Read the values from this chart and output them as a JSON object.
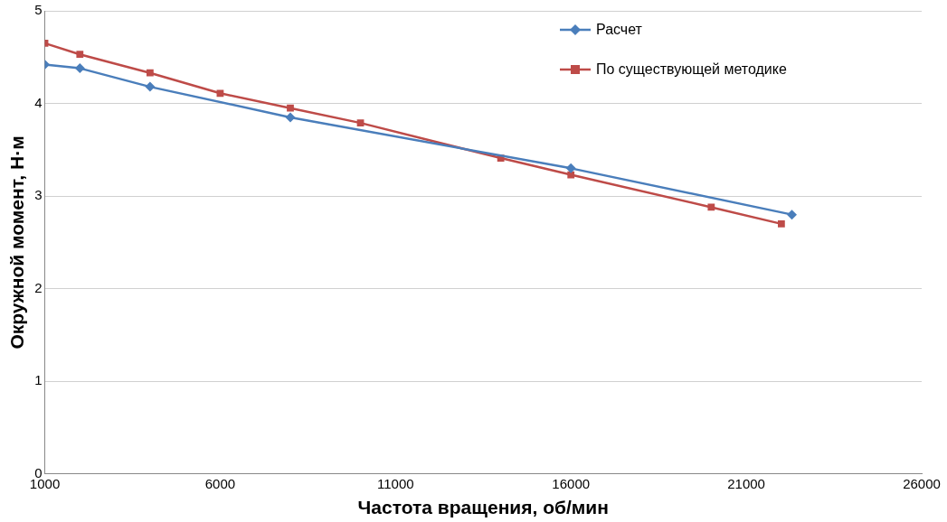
{
  "chart_data": {
    "type": "line",
    "xlabel": "Частота вращения, об/мин",
    "ylabel": "Окружной момент, Н·м",
    "series": [
      {
        "name": "Расчет",
        "color": "#4a7ebb",
        "marker": "diamond",
        "x": [
          1000,
          2000,
          4000,
          8000,
          16000,
          22300
        ],
        "values": [
          4.42,
          4.38,
          4.18,
          3.85,
          3.3,
          2.8
        ]
      },
      {
        "name": "По существующей методике",
        "color": "#be4b48",
        "marker": "square",
        "x": [
          1000,
          2000,
          4000,
          6000,
          8000,
          10000,
          14000,
          16000,
          20000,
          22000
        ],
        "values": [
          4.65,
          4.53,
          4.33,
          4.11,
          3.95,
          3.79,
          3.41,
          3.23,
          2.88,
          2.7
        ]
      }
    ],
    "xlim": [
      1000,
      26000
    ],
    "xticks": [
      1000,
      6000,
      11000,
      16000,
      21000,
      26000
    ],
    "ylim": [
      0,
      5
    ],
    "yticks": [
      0,
      1,
      2,
      3,
      4,
      5
    ],
    "grid": "y",
    "legend": "top right"
  }
}
